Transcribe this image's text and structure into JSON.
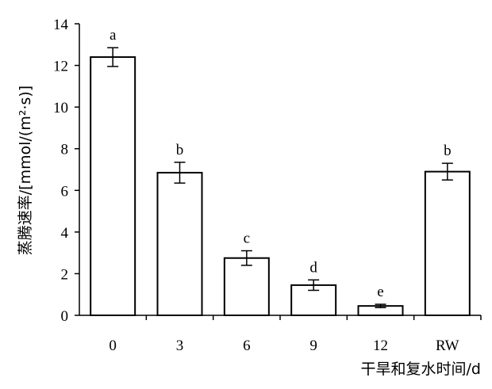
{
  "chart_data": {
    "type": "bar",
    "categories": [
      "0",
      "3",
      "6",
      "9",
      "12",
      "RW"
    ],
    "values": [
      12.4,
      6.85,
      2.75,
      1.45,
      0.45,
      6.9
    ],
    "errors": [
      0.45,
      0.5,
      0.35,
      0.25,
      0.08,
      0.4
    ],
    "significance": [
      "a",
      "b",
      "c",
      "d",
      "e",
      "b"
    ],
    "xlabel": "干旱和复水时间/d",
    "ylabel": "蒸腾速率/[mmol/(m²·s)]",
    "ylim": [
      0,
      14
    ],
    "yticks": [
      0,
      2,
      4,
      6,
      8,
      10,
      12,
      14
    ],
    "grid": false,
    "bar_fill": "#ffffff",
    "bar_stroke": "#000000"
  }
}
